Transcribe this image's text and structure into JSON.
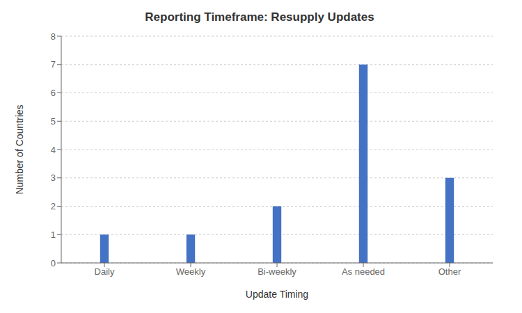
{
  "chart_data": {
    "type": "bar",
    "title": "Reporting Timeframe: Resupply Updates",
    "xlabel": "Update Timing",
    "ylabel": "Number of Countries",
    "categories": [
      "Daily",
      "Weekly",
      "Bi-weekly",
      "As needed",
      "Other"
    ],
    "values": [
      1,
      1,
      2,
      7,
      3
    ],
    "color": "#4472C4",
    "ylim": [
      0,
      8
    ],
    "yticks": [
      0,
      1,
      2,
      3,
      4,
      5,
      6,
      7,
      8
    ],
    "grid": true
  }
}
